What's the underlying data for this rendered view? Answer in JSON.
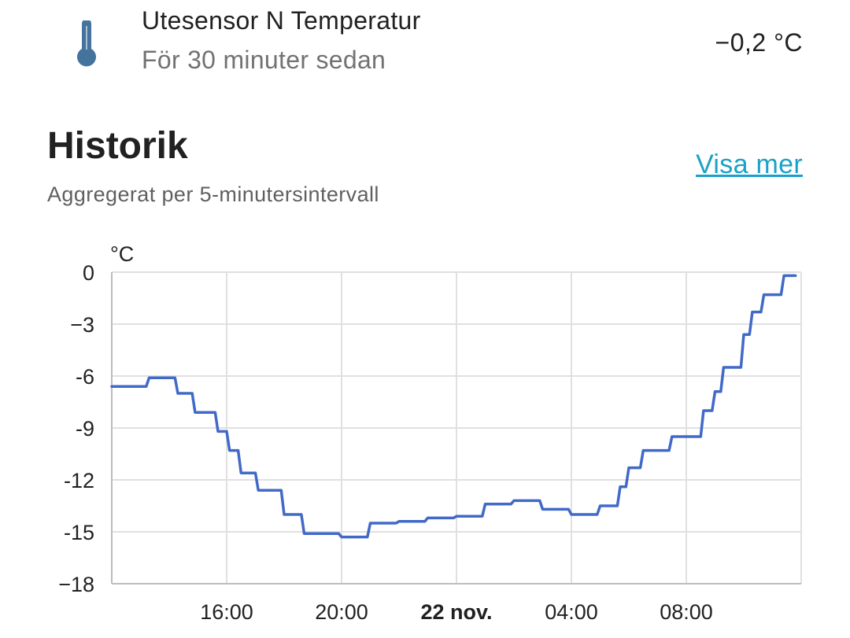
{
  "entity": {
    "name": "Utesensor N Temperatur",
    "last_changed": "För 30 minuter sedan",
    "state": "−0,2 °C",
    "icon": "thermometer-icon",
    "icon_color": "#44739e"
  },
  "history": {
    "title": "Historik",
    "subtitle": "Aggregerat per 5-minutersintervall",
    "more_link": "Visa mer"
  },
  "colors": {
    "line": "#4169c8",
    "link": "#1ba1c8",
    "grid": "#e0e0e0"
  },
  "chart_data": {
    "type": "line",
    "step": true,
    "unit_label": "°C",
    "ylim": [
      -18,
      0
    ],
    "y_ticks": [
      0,
      -3,
      -6,
      -9,
      -12,
      -15,
      -18
    ],
    "y_tick_labels": [
      "0",
      "−3",
      "-6",
      "-9",
      "-12",
      "-15",
      "−18"
    ],
    "xlim": [
      13,
      37
    ],
    "x_ticks": [
      {
        "t": 17,
        "label": "16:00",
        "bold": false
      },
      {
        "t": 21,
        "label": "20:00",
        "bold": false
      },
      {
        "t": 25,
        "label": "22 nov.",
        "bold": true
      },
      {
        "t": 29,
        "label": "04:00",
        "bold": false
      },
      {
        "t": 33,
        "label": "08:00",
        "bold": false
      }
    ],
    "grid": true,
    "series": [
      {
        "points": [
          [
            13.0,
            -6.6
          ],
          [
            14.2,
            -6.6
          ],
          [
            14.3,
            -6.1
          ],
          [
            15.2,
            -6.1
          ],
          [
            15.3,
            -7.0
          ],
          [
            15.8,
            -7.0
          ],
          [
            15.9,
            -8.1
          ],
          [
            16.6,
            -8.1
          ],
          [
            16.7,
            -9.2
          ],
          [
            17.0,
            -9.2
          ],
          [
            17.1,
            -10.3
          ],
          [
            17.4,
            -10.3
          ],
          [
            17.5,
            -11.6
          ],
          [
            18.0,
            -11.6
          ],
          [
            18.1,
            -12.6
          ],
          [
            18.9,
            -12.6
          ],
          [
            19.0,
            -14.0
          ],
          [
            19.6,
            -14.0
          ],
          [
            19.7,
            -15.1
          ],
          [
            20.9,
            -15.1
          ],
          [
            21.0,
            -15.3
          ],
          [
            21.9,
            -15.3
          ],
          [
            22.0,
            -14.5
          ],
          [
            22.9,
            -14.5
          ],
          [
            23.0,
            -14.4
          ],
          [
            23.9,
            -14.4
          ],
          [
            24.0,
            -14.2
          ],
          [
            24.9,
            -14.2
          ],
          [
            25.0,
            -14.1
          ],
          [
            25.9,
            -14.1
          ],
          [
            26.0,
            -13.4
          ],
          [
            26.9,
            -13.4
          ],
          [
            27.0,
            -13.2
          ],
          [
            27.9,
            -13.2
          ],
          [
            28.0,
            -13.7
          ],
          [
            28.9,
            -13.7
          ],
          [
            29.0,
            -14.0
          ],
          [
            29.9,
            -14.0
          ],
          [
            30.0,
            -13.5
          ],
          [
            30.6,
            -13.5
          ],
          [
            30.7,
            -12.4
          ],
          [
            30.9,
            -12.4
          ],
          [
            31.0,
            -11.3
          ],
          [
            31.4,
            -11.3
          ],
          [
            31.5,
            -10.3
          ],
          [
            32.4,
            -10.3
          ],
          [
            32.5,
            -9.5
          ],
          [
            33.5,
            -9.5
          ],
          [
            33.6,
            -8.0
          ],
          [
            33.9,
            -8.0
          ],
          [
            34.0,
            -6.9
          ],
          [
            34.2,
            -6.9
          ],
          [
            34.3,
            -5.5
          ],
          [
            34.9,
            -5.5
          ],
          [
            35.0,
            -3.6
          ],
          [
            35.2,
            -3.6
          ],
          [
            35.3,
            -2.3
          ],
          [
            35.6,
            -2.3
          ],
          [
            35.7,
            -1.3
          ],
          [
            36.3,
            -1.3
          ],
          [
            36.4,
            -0.2
          ],
          [
            36.8,
            -0.2
          ]
        ]
      }
    ]
  }
}
